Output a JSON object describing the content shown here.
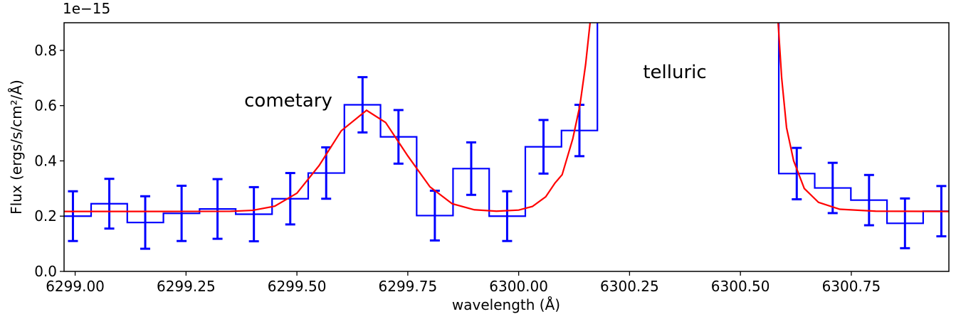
{
  "chart_data": {
    "type": "line",
    "x_label": "wavelength (Å)",
    "y_label": "Flux (ergs/s/cm²/Å)",
    "y_offset_label": "1e−15",
    "annotations": [
      {
        "text": "cometary"
      },
      {
        "text": "telluric"
      }
    ],
    "xlim": [
      6298.975,
      6300.97
    ],
    "ylim": [
      0,
      0.9
    ],
    "xticks": [
      {
        "value": 6299.0,
        "label": "6299.00"
      },
      6299.25,
      {
        "value": 6299.5,
        "label": "6299.50"
      },
      6299.75,
      {
        "value": 6300.0,
        "label": "6300.00"
      },
      6300.25,
      {
        "value": 6300.5,
        "label": "6300.50"
      },
      6300.75
    ],
    "yticks": [
      {
        "value": 0,
        "label": "0.0"
      },
      0.2,
      0.4,
      0.6,
      0.8
    ],
    "series": [
      {
        "color": "#0000ff",
        "drawstyle": "steps-mid",
        "x": [
          6298.995,
          6299.077,
          6299.158,
          6299.24,
          6299.321,
          6299.403,
          6299.485,
          6299.566,
          6299.648,
          6299.729,
          6299.811,
          6299.893,
          6299.974,
          6300.056,
          6300.137,
          null,
          null,
          null,
          null,
          null,
          6300.627,
          6300.708,
          6300.79,
          6300.871,
          6300.953
        ],
        "values": [
          0.2,
          0.245,
          0.177,
          0.21,
          0.226,
          0.207,
          0.263,
          0.356,
          0.603,
          0.487,
          0.202,
          0.372,
          0.2,
          0.451,
          0.51,
          null,
          null,
          null,
          null,
          null,
          0.354,
          0.302,
          0.258,
          0.174,
          0.218
        ],
        "errors": [
          0.09,
          0.09,
          0.095,
          0.1,
          0.108,
          0.098,
          0.093,
          0.093,
          0.1,
          0.097,
          0.09,
          0.095,
          0.09,
          0.097,
          0.093,
          null,
          null,
          null,
          null,
          null,
          0.093,
          0.091,
          0.091,
          0.09,
          0.091
        ]
      },
      {
        "color": "#ff0000",
        "drawstyle": "default",
        "x": [
          6298.975,
          6299.2,
          6299.35,
          6299.4,
          6299.45,
          6299.5,
          6299.55,
          6299.6,
          6299.657,
          6299.7,
          6299.75,
          6299.8,
          6299.85,
          6299.9,
          6299.95,
          6300.0,
          6300.031,
          6300.061,
          6300.082,
          6300.098,
          6300.122,
          6300.138,
          6300.151,
          6300.161,
          null,
          6300.585,
          6300.593,
          6300.604,
          6300.62,
          6300.644,
          6300.676,
          6300.724,
          6300.805,
          6300.97
        ],
        "values": [
          0.217,
          0.217,
          0.2175,
          0.221,
          0.236,
          0.283,
          0.383,
          0.509,
          0.583,
          0.539,
          0.418,
          0.306,
          0.245,
          0.223,
          0.218,
          0.222,
          0.235,
          0.27,
          0.32,
          0.35,
          0.48,
          0.6,
          0.75,
          0.9,
          null,
          0.9,
          0.7,
          0.52,
          0.4,
          0.3,
          0.25,
          0.225,
          0.218,
          0.217
        ]
      }
    ]
  }
}
